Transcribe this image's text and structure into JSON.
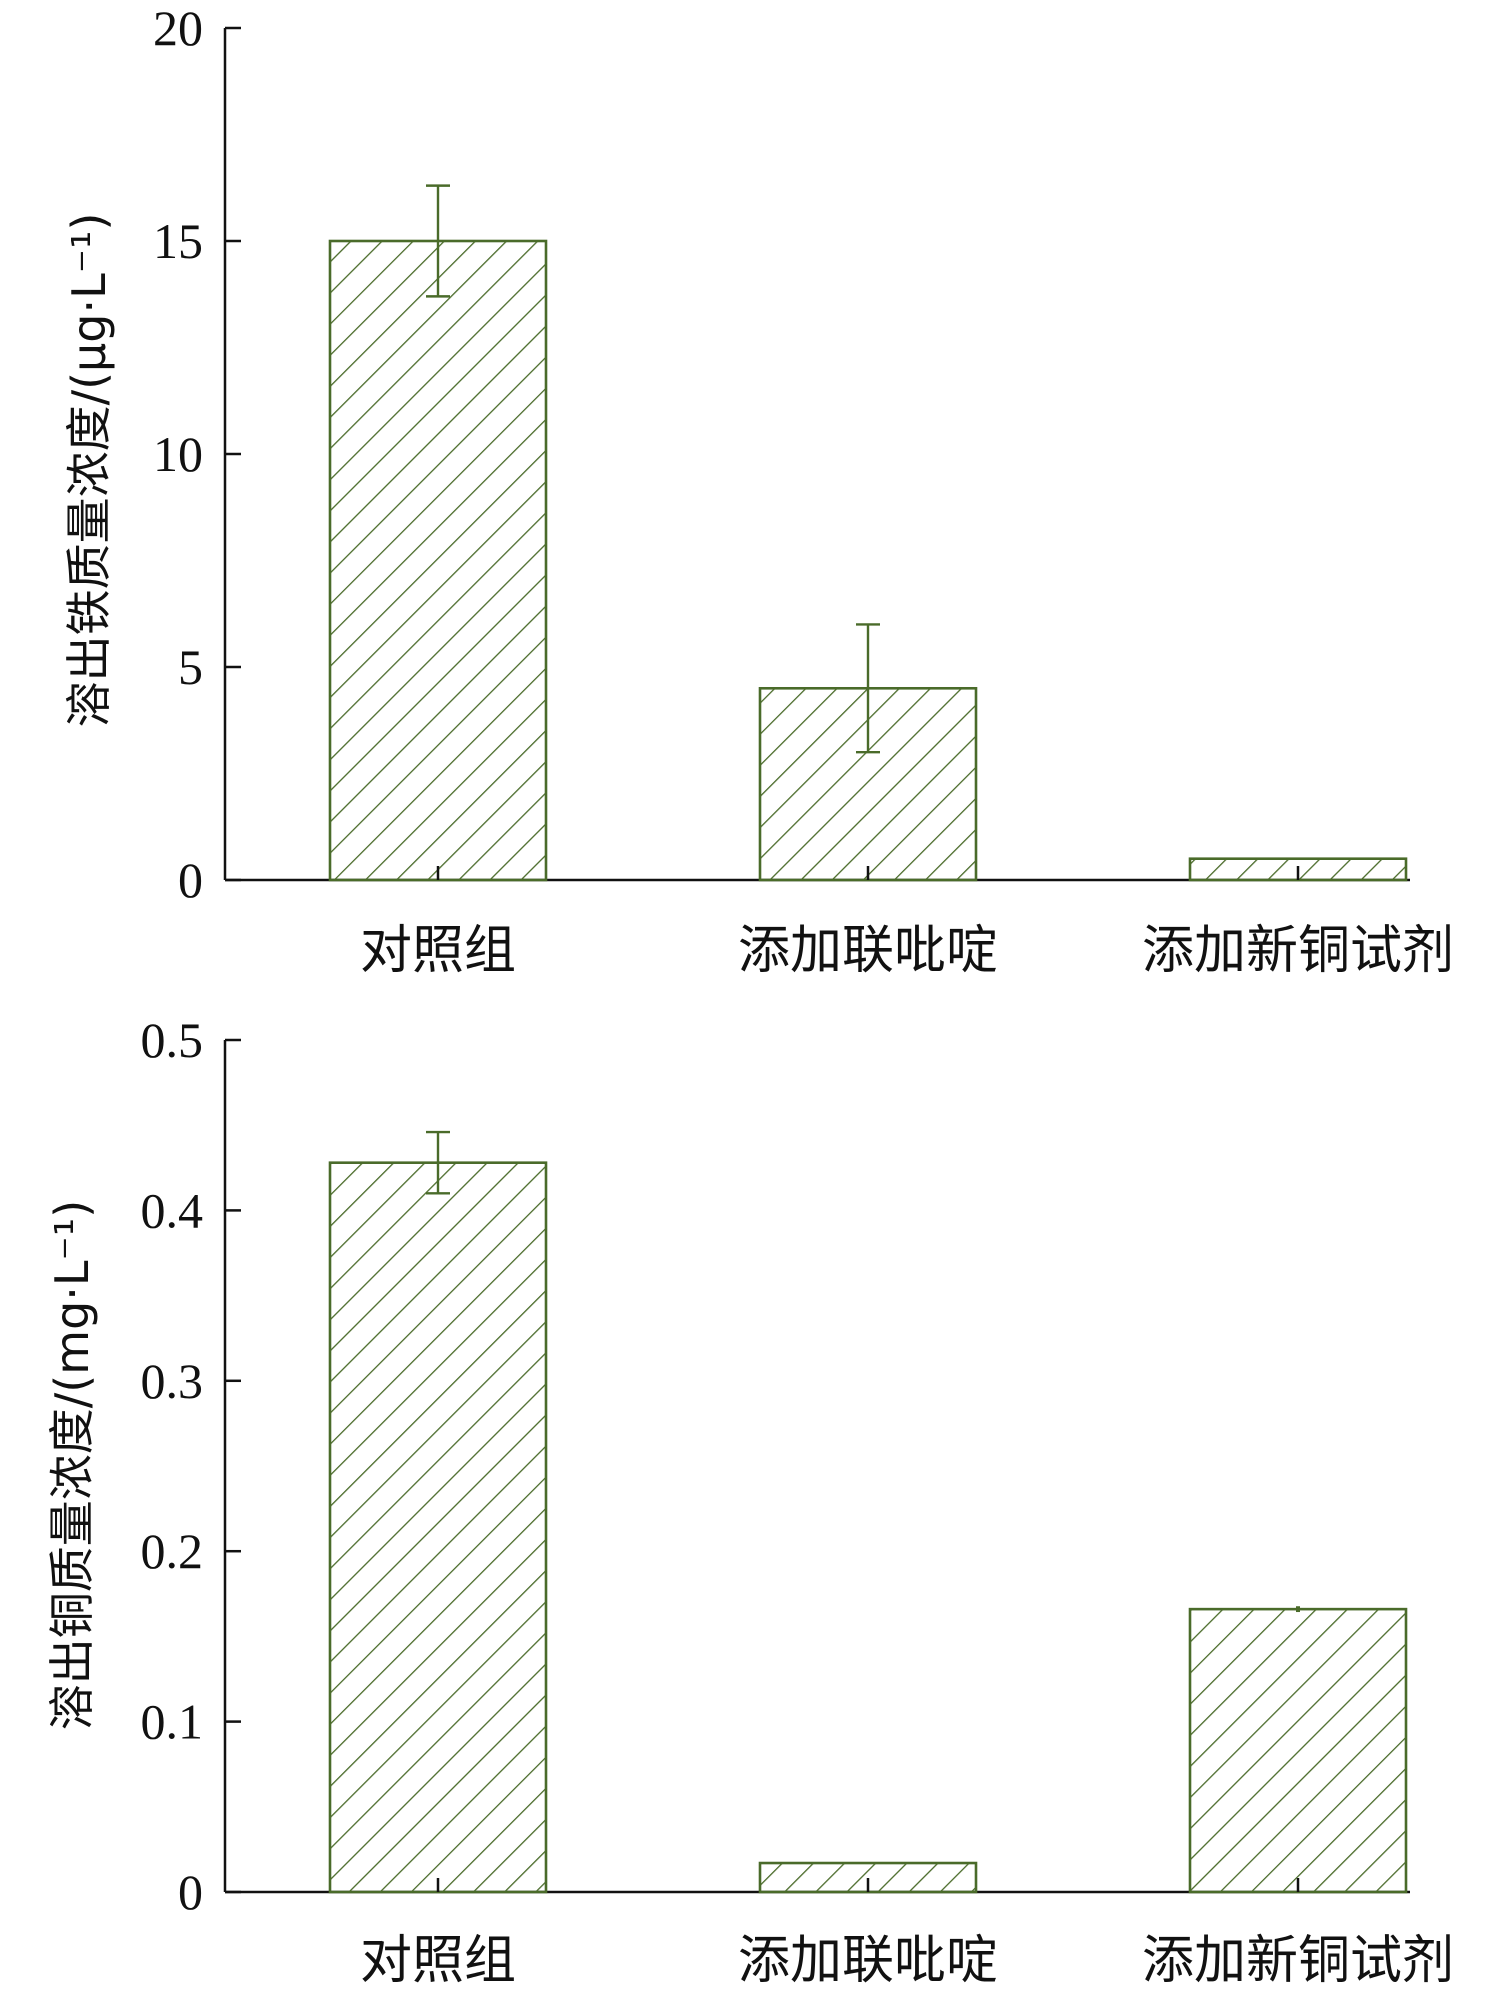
{
  "chart_data": [
    {
      "type": "bar",
      "categories": [
        "对照组",
        "添加联吡啶",
        "添加新铜试剂"
      ],
      "values": [
        15.0,
        4.5,
        0.5
      ],
      "error": [
        1.3,
        1.5,
        0.0
      ],
      "ylabel": "溶出铁质量浓度/(μg·L⁻¹)",
      "ylim": [
        0,
        20
      ],
      "yticks": [
        "0",
        "5",
        "10",
        "15",
        "20"
      ],
      "bar_color": "#4a6b2a",
      "fill_pattern": "diagonal-hatch",
      "grid": false
    },
    {
      "type": "bar",
      "categories": [
        "对照组",
        "添加联吡啶",
        "添加新铜试剂"
      ],
      "values": [
        0.428,
        0.017,
        0.166
      ],
      "error": [
        0.018,
        0.0,
        0.001
      ],
      "ylabel": "溶出铜质量浓度/(mg·L⁻¹)",
      "ylim": [
        0,
        0.5
      ],
      "yticks": [
        "0",
        "0.1",
        "0.2",
        "0.3",
        "0.4",
        "0.5"
      ],
      "bar_color": "#4a6b2a",
      "fill_pattern": "diagonal-hatch",
      "grid": false
    }
  ]
}
